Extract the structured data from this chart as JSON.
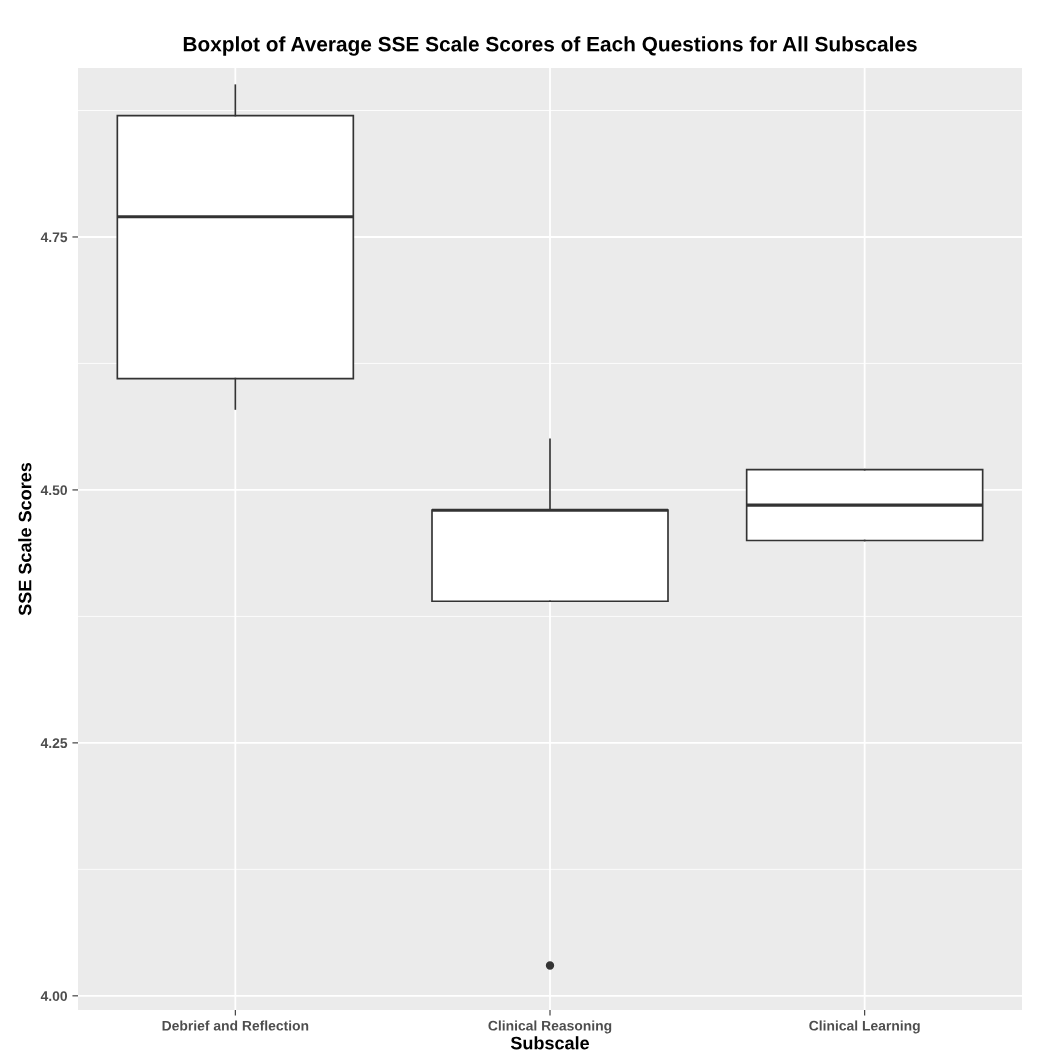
{
  "chart_data": {
    "type": "box",
    "title": "Boxplot of Average SSE Scale Scores of Each Questions for All Subscales",
    "xlabel": "Subscale",
    "ylabel": "SSE Scale Scores",
    "categories": [
      "Debrief and Reflection",
      "Clinical Reasoning",
      "Clinical Learning"
    ],
    "boxes": [
      {
        "low": 4.58,
        "q1": 4.61,
        "median": 4.77,
        "q3": 4.87,
        "high": 4.9
      },
      {
        "low": 4.39,
        "q1": 4.39,
        "median": 4.48,
        "q3": 4.48,
        "high": 4.55,
        "outliers": [
          4.03
        ]
      },
      {
        "low": 4.45,
        "q1": 4.45,
        "median": 4.485,
        "q3": 4.52,
        "high": 4.52
      }
    ],
    "color": "#333333",
    "ylim": [
      3.986,
      4.917
    ],
    "yticks": [
      {
        "value": 4.0,
        "label": "4.00"
      },
      {
        "value": 4.125,
        "label": null
      },
      {
        "value": 4.25,
        "label": "4.25"
      },
      {
        "value": 4.375,
        "label": null
      },
      {
        "value": 4.5,
        "label": "4.50"
      },
      {
        "value": 4.625,
        "label": null
      },
      {
        "value": 4.75,
        "label": "4.75"
      },
      {
        "value": 4.875,
        "label": null
      }
    ],
    "grid": true
  }
}
